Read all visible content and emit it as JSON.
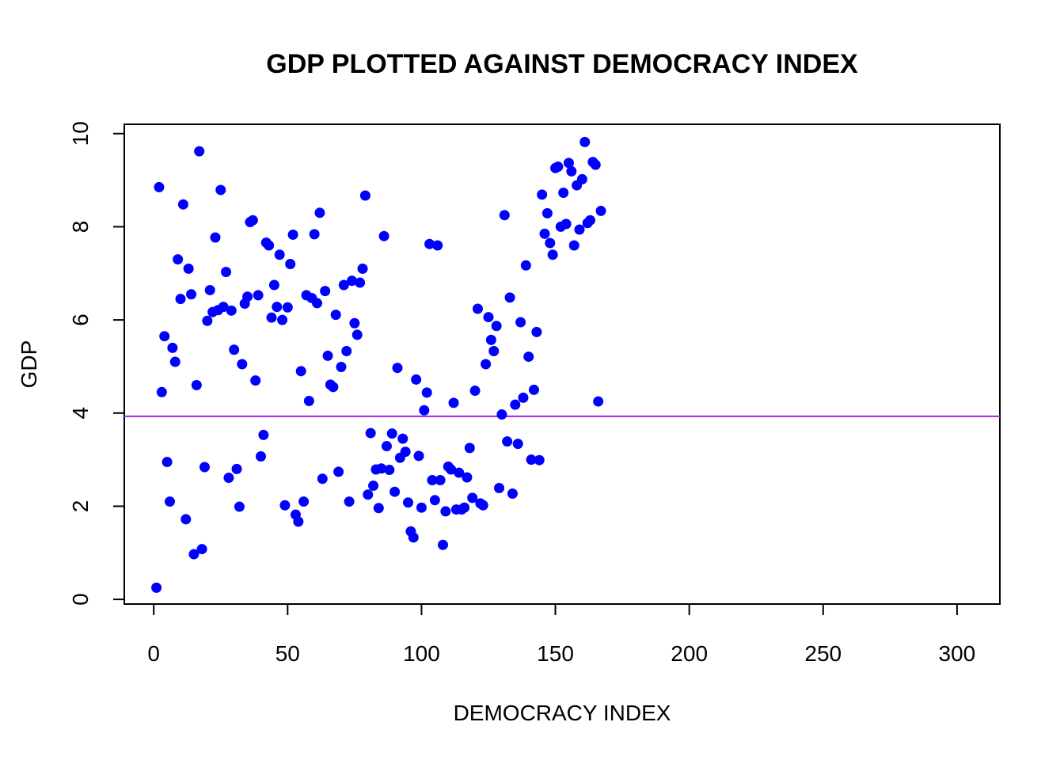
{
  "chart_data": {
    "type": "scatter",
    "title": "GDP PLOTTED AGAINST DEMOCRACY INDEX",
    "xlabel": "DEMOCRACY INDEX",
    "ylabel": "GDP",
    "xlim": [
      -11,
      316
    ],
    "ylim": [
      -0.1,
      10.2
    ],
    "xticks": [
      "0",
      "50",
      "100",
      "150",
      "200",
      "250",
      "300"
    ],
    "yticks": [
      "0",
      "2",
      "4",
      "6",
      "8",
      "10"
    ],
    "grid": false,
    "legend": "none",
    "point_color": "#0000FF",
    "reference_line": {
      "orientation": "horizontal",
      "y": 3.93,
      "color": "#A020F0"
    },
    "points": [
      [
        1,
        0.25
      ],
      [
        2,
        8.85
      ],
      [
        3,
        4.45
      ],
      [
        4,
        5.65
      ],
      [
        5,
        2.95
      ],
      [
        6,
        2.1
      ],
      [
        7,
        5.4
      ],
      [
        8,
        5.1
      ],
      [
        9,
        7.3
      ],
      [
        10,
        6.45
      ],
      [
        11,
        8.48
      ],
      [
        12,
        1.72
      ],
      [
        13,
        7.1
      ],
      [
        14,
        6.55
      ],
      [
        15,
        0.97
      ],
      [
        16,
        4.6
      ],
      [
        17,
        9.62
      ],
      [
        18,
        1.08
      ],
      [
        19,
        2.84
      ],
      [
        20,
        5.98
      ],
      [
        21,
        6.64
      ],
      [
        22,
        6.17
      ],
      [
        23,
        7.77
      ],
      [
        24,
        6.21
      ],
      [
        25,
        8.79
      ],
      [
        26,
        6.28
      ],
      [
        27,
        7.03
      ],
      [
        28,
        2.61
      ],
      [
        29,
        6.2
      ],
      [
        30,
        5.36
      ],
      [
        31,
        2.8
      ],
      [
        32,
        1.99
      ],
      [
        33,
        5.05
      ],
      [
        34,
        6.35
      ],
      [
        35,
        6.5
      ],
      [
        36,
        8.1
      ],
      [
        37,
        8.14
      ],
      [
        38,
        4.7
      ],
      [
        39,
        6.53
      ],
      [
        40,
        3.07
      ],
      [
        41,
        3.53
      ],
      [
        42,
        7.66
      ],
      [
        43,
        7.6
      ],
      [
        44,
        6.05
      ],
      [
        45,
        6.75
      ],
      [
        46,
        6.28
      ],
      [
        47,
        7.4
      ],
      [
        48,
        6.0
      ],
      [
        49,
        2.02
      ],
      [
        50,
        6.27
      ],
      [
        51,
        7.2
      ],
      [
        52,
        7.83
      ],
      [
        53,
        1.82
      ],
      [
        54,
        1.67
      ],
      [
        55,
        4.9
      ],
      [
        56,
        2.1
      ],
      [
        57,
        6.53
      ],
      [
        58,
        4.26
      ],
      [
        59,
        6.47
      ],
      [
        60,
        7.84
      ],
      [
        61,
        6.36
      ],
      [
        62,
        8.3
      ],
      [
        63,
        2.59
      ],
      [
        64,
        6.62
      ],
      [
        65,
        5.23
      ],
      [
        66,
        4.61
      ],
      [
        67,
        4.56
      ],
      [
        68,
        6.11
      ],
      [
        69,
        2.74
      ],
      [
        70,
        4.99
      ],
      [
        71,
        6.75
      ],
      [
        72,
        5.33
      ],
      [
        73,
        2.1
      ],
      [
        74,
        6.84
      ],
      [
        75,
        5.93
      ],
      [
        76,
        5.68
      ],
      [
        77,
        6.8
      ],
      [
        78,
        7.1
      ],
      [
        79,
        8.67
      ],
      [
        80,
        2.25
      ],
      [
        81,
        3.57
      ],
      [
        82,
        2.44
      ],
      [
        83,
        2.79
      ],
      [
        84,
        1.96
      ],
      [
        85,
        2.81
      ],
      [
        86,
        7.8
      ],
      [
        87,
        3.29
      ],
      [
        88,
        2.78
      ],
      [
        89,
        3.56
      ],
      [
        90,
        2.31
      ],
      [
        91,
        4.97
      ],
      [
        92,
        3.04
      ],
      [
        93,
        3.45
      ],
      [
        94,
        3.17
      ],
      [
        95,
        2.08
      ],
      [
        96,
        1.46
      ],
      [
        97,
        1.33
      ],
      [
        98,
        4.72
      ],
      [
        99,
        3.08
      ],
      [
        100,
        1.97
      ],
      [
        101,
        4.06
      ],
      [
        102,
        4.44
      ],
      [
        103,
        7.63
      ],
      [
        104,
        2.56
      ],
      [
        105,
        2.13
      ],
      [
        106,
        7.6
      ],
      [
        107,
        2.56
      ],
      [
        108,
        1.17
      ],
      [
        109,
        1.89
      ],
      [
        110,
        2.85
      ],
      [
        111,
        2.79
      ],
      [
        112,
        4.22
      ],
      [
        113,
        1.93
      ],
      [
        114,
        2.72
      ],
      [
        115,
        1.93
      ],
      [
        116,
        1.97
      ],
      [
        117,
        2.62
      ],
      [
        118,
        3.25
      ],
      [
        119,
        2.18
      ],
      [
        120,
        4.48
      ],
      [
        121,
        6.24
      ],
      [
        122,
        2.06
      ],
      [
        123,
        2.02
      ],
      [
        124,
        5.05
      ],
      [
        125,
        6.06
      ],
      [
        126,
        5.57
      ],
      [
        127,
        5.33
      ],
      [
        128,
        5.87
      ],
      [
        129,
        2.39
      ],
      [
        130,
        3.97
      ],
      [
        131,
        8.25
      ],
      [
        132,
        3.39
      ],
      [
        133,
        6.48
      ],
      [
        134,
        2.27
      ],
      [
        135,
        4.18
      ],
      [
        136,
        3.34
      ],
      [
        137,
        5.95
      ],
      [
        138,
        4.33
      ],
      [
        139,
        7.17
      ],
      [
        140,
        5.21
      ],
      [
        141,
        3.0
      ],
      [
        142,
        4.5
      ],
      [
        143,
        5.74
      ],
      [
        144,
        2.99
      ],
      [
        145,
        8.69
      ],
      [
        146,
        7.85
      ],
      [
        147,
        8.29
      ],
      [
        148,
        7.65
      ],
      [
        149,
        7.4
      ],
      [
        150,
        9.26
      ],
      [
        151,
        9.29
      ],
      [
        152,
        8.0
      ],
      [
        153,
        8.73
      ],
      [
        154,
        8.06
      ],
      [
        155,
        9.37
      ],
      [
        156,
        9.19
      ],
      [
        157,
        7.6
      ],
      [
        158,
        8.89
      ],
      [
        159,
        7.94
      ],
      [
        160,
        9.02
      ],
      [
        161,
        9.82
      ],
      [
        162,
        8.08
      ],
      [
        163,
        8.14
      ],
      [
        164,
        9.39
      ],
      [
        165,
        9.33
      ],
      [
        166,
        4.25
      ],
      [
        167,
        8.34
      ]
    ]
  }
}
